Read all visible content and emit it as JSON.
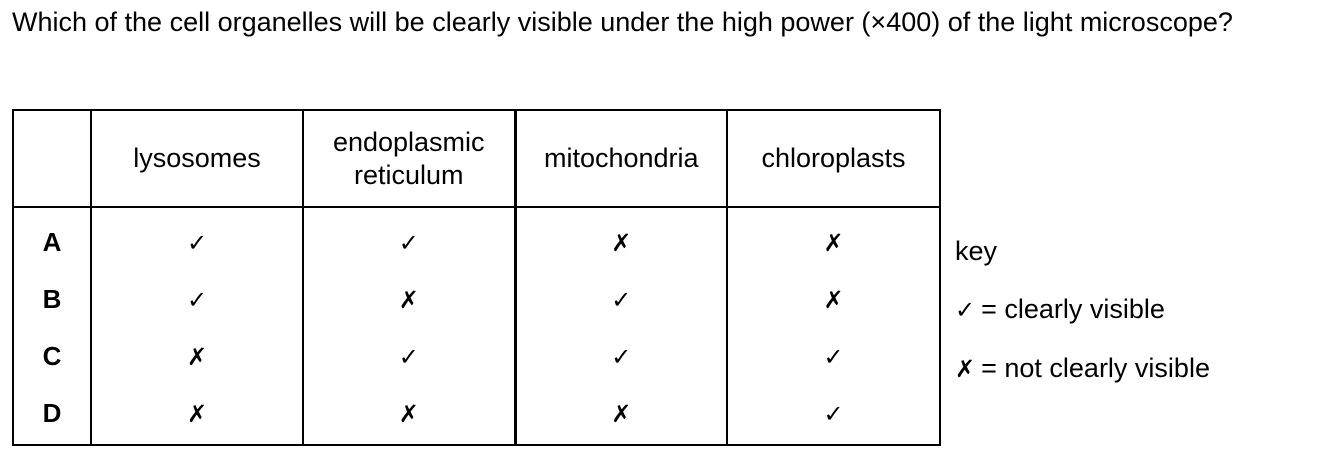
{
  "question": {
    "text": "Which of the cell organelles will be clearly visible under the high power (×400) of the light microscope?"
  },
  "table": {
    "columns": [
      "",
      "lysosomes",
      "endoplasmic reticulum",
      "mitochondria",
      "chloroplasts"
    ],
    "rows": [
      {
        "label": "A",
        "cells": [
          "✓",
          "✓",
          "✗",
          "✗"
        ]
      },
      {
        "label": "B",
        "cells": [
          "✓",
          "✗",
          "✓",
          "✗"
        ]
      },
      {
        "label": "C",
        "cells": [
          "✗",
          "✓",
          "✓",
          "✓"
        ]
      },
      {
        "label": "D",
        "cells": [
          "✗",
          "✗",
          "✗",
          "✓"
        ]
      }
    ]
  },
  "key": {
    "title": "key",
    "items": [
      {
        "symbol": "✓",
        "meaning": "= clearly visible"
      },
      {
        "symbol": "✗",
        "meaning": "= not clearly visible"
      }
    ]
  }
}
